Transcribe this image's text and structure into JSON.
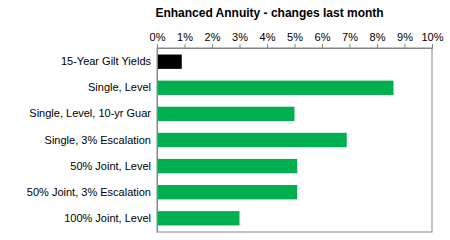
{
  "chart_data": {
    "type": "bar",
    "orientation": "horizontal",
    "title": "Enhanced Annuity - changes last month",
    "categories": [
      "15-Year Gilt Yields",
      "Single, Level",
      "Single, Level, 10-yr Guar",
      "Single, 3% Escalation",
      "50% Joint, Level",
      "50% Joint, 3% Escalation",
      "100% Joint, Level"
    ],
    "values": [
      0.9,
      8.6,
      5.0,
      6.9,
      5.1,
      5.1,
      3.0
    ],
    "colors": [
      "#000000",
      "#00b050",
      "#00b050",
      "#00b050",
      "#00b050",
      "#00b050",
      "#00b050"
    ],
    "xlim": [
      0,
      10
    ],
    "xticks": [
      {
        "value": 0,
        "label": "0%"
      },
      {
        "value": 1,
        "label": "1%"
      },
      {
        "value": 2,
        "label": "2%"
      },
      {
        "value": 3,
        "label": "3%"
      },
      {
        "value": 4,
        "label": "4%"
      },
      {
        "value": 5,
        "label": "5%"
      },
      {
        "value": 6,
        "label": "6%"
      },
      {
        "value": 7,
        "label": "7%"
      },
      {
        "value": 8,
        "label": "8%"
      },
      {
        "value": 9,
        "label": "9%"
      },
      {
        "value": 10,
        "label": "10%"
      }
    ],
    "grid": false
  }
}
